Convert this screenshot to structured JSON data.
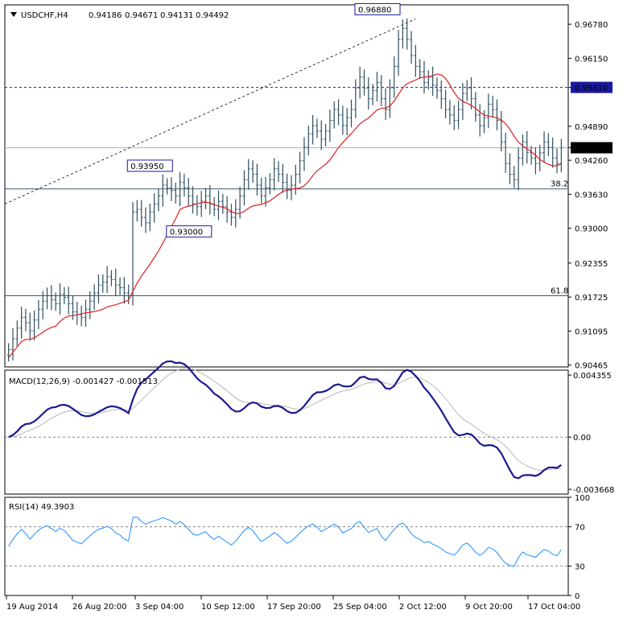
{
  "chart_data": {
    "type": "line",
    "symbol": "USDCHF,H4",
    "header_values": [
      "0.94186",
      "0.94671",
      "0.94131",
      "0.94492"
    ],
    "x_ticks": [
      "19 Aug 2014",
      "26 Aug 20:00",
      "3 Sep 04:00",
      "10 Sep 12:00",
      "17 Sep 20:00",
      "25 Sep 04:00",
      "2 Oct 12:00",
      "9 Oct 20:00",
      "17 Oct 04:00"
    ],
    "price_panel": {
      "ylim": [
        0.9043,
        0.9714
      ],
      "y_ticks": [
        "0.96780",
        "0.96150",
        "0.95610",
        "0.94890",
        "0.94492",
        "0.94260",
        "0.93630",
        "0.93000",
        "0.92355",
        "0.91725",
        "0.91095",
        "0.90465"
      ],
      "current_price": "0.94492",
      "dashed_level": "0.95610",
      "fib_levels": [
        {
          "label": "38.2",
          "value": 0.9373
        },
        {
          "label": "61.8",
          "value": 0.9175
        }
      ],
      "annotations": [
        "0.96880",
        "0.93950",
        "0.93000"
      ],
      "close": [
        0.9075,
        0.9095,
        0.9115,
        0.9135,
        0.9125,
        0.911,
        0.913,
        0.915,
        0.9165,
        0.9175,
        0.9168,
        0.916,
        0.9178,
        0.9172,
        0.916,
        0.9145,
        0.914,
        0.9135,
        0.915,
        0.9165,
        0.918,
        0.9195,
        0.92,
        0.921,
        0.9205,
        0.9195,
        0.919,
        0.918,
        0.9175,
        0.933,
        0.9335,
        0.932,
        0.931,
        0.933,
        0.9345,
        0.936,
        0.938,
        0.9375,
        0.937,
        0.936,
        0.9385,
        0.9375,
        0.936,
        0.9345,
        0.934,
        0.935,
        0.936,
        0.9345,
        0.9335,
        0.935,
        0.934,
        0.933,
        0.932,
        0.9335,
        0.936,
        0.939,
        0.941,
        0.94,
        0.938,
        0.936,
        0.9375,
        0.939,
        0.941,
        0.94,
        0.9385,
        0.937,
        0.938,
        0.94,
        0.9425,
        0.945,
        0.9475,
        0.949,
        0.948,
        0.9465,
        0.948,
        0.95,
        0.952,
        0.951,
        0.949,
        0.9505,
        0.952,
        0.956,
        0.958,
        0.956,
        0.954,
        0.9555,
        0.957,
        0.954,
        0.952,
        0.956,
        0.96,
        0.965,
        0.967,
        0.965,
        0.962,
        0.96,
        0.959,
        0.957,
        0.958,
        0.9565,
        0.9555,
        0.954,
        0.952,
        0.951,
        0.95,
        0.952,
        0.955,
        0.956,
        0.954,
        0.951,
        0.949,
        0.9505,
        0.953,
        0.952,
        0.95,
        0.946,
        0.942,
        0.94,
        0.939,
        0.943,
        0.946,
        0.944,
        0.943,
        0.942,
        0.944,
        0.946,
        0.945,
        0.943,
        0.942,
        0.9449
      ]
    },
    "macd_panel": {
      "label": "MACD(12,26,9) -0.001427 -0.001513",
      "ylim": [
        -0.004,
        0.0047
      ],
      "y_ticks": [
        "0.004355",
        "0.00",
        "-0.003668"
      ]
    },
    "rsi_panel": {
      "label": "RSI(14) 49.3903",
      "ylim": [
        0,
        100
      ],
      "y_ticks": [
        "100",
        "70",
        "30",
        "0"
      ]
    }
  }
}
